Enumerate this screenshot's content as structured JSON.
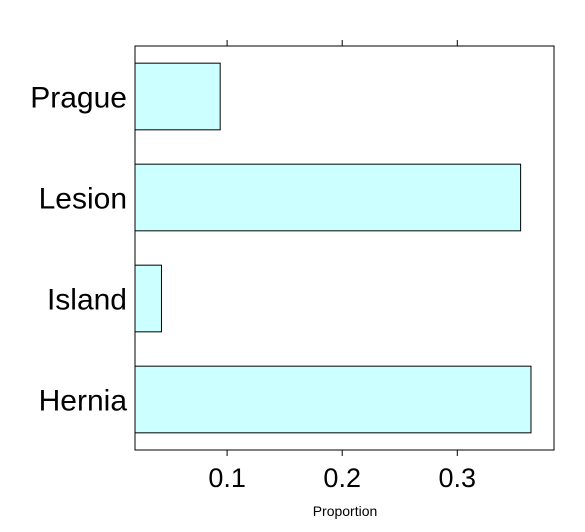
{
  "chart_data": {
    "type": "bar",
    "orientation": "horizontal",
    "categories": [
      "Prague",
      "Lesion",
      "Island",
      "Hernia"
    ],
    "values": [
      0.094,
      0.355,
      0.043,
      0.364
    ],
    "xlabel": "Proportion",
    "ylabel": "",
    "xlim": [
      0.02,
      0.384
    ],
    "xticks": [
      0.1,
      0.2,
      0.3
    ],
    "xtick_labels": [
      "0.1",
      "0.2",
      "0.3"
    ],
    "grid": false,
    "colors": {
      "bar_fill": "#ccffff",
      "bar_stroke": "#000000",
      "frame": "#000000"
    }
  }
}
